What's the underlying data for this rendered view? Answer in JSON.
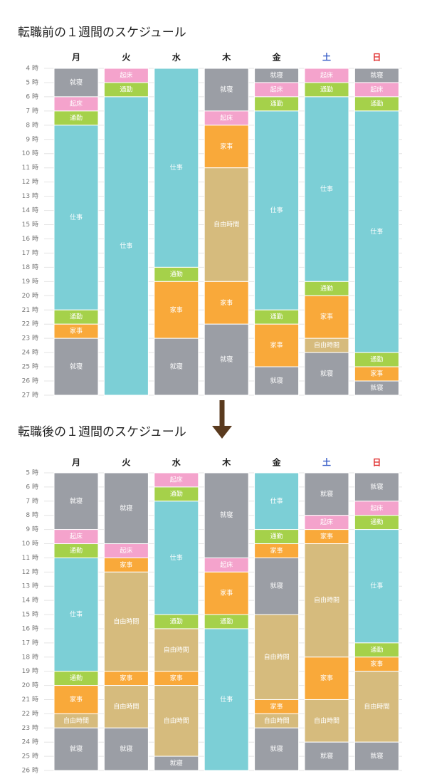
{
  "chart_data": [
    {
      "type": "schedule",
      "title": "転職前の１週間のスケジュール",
      "categories": [
        "月",
        "火",
        "水",
        "木",
        "金",
        "土",
        "日"
      ],
      "category_colors": [
        "#222222",
        "#222222",
        "#222222",
        "#222222",
        "#222222",
        "#3a5fc8",
        "#e03030"
      ],
      "colors": {
        "就寝": "#9b9ea5",
        "起床": "#f4a3cc",
        "通勤": "#a5d14a",
        "仕事": "#7ccfd6",
        "家事": "#f9a93a",
        "自由時間": "#d6bb7d"
      },
      "ylim": [
        4,
        27
      ],
      "yticks": [
        {
          "value": 4,
          "label": "4 時"
        },
        {
          "value": 5,
          "label": "5 時"
        },
        {
          "value": 6,
          "label": "6 時"
        },
        {
          "value": 7,
          "label": "7 時"
        },
        {
          "value": 8,
          "label": "8 時"
        },
        {
          "value": 9,
          "label": "9 時"
        },
        {
          "value": 10,
          "label": "10 時"
        },
        {
          "value": 11,
          "label": "11 時"
        },
        {
          "value": 12,
          "label": "12 時"
        },
        {
          "value": 13,
          "label": "13 時"
        },
        {
          "value": 14,
          "label": "14 時"
        },
        {
          "value": 15,
          "label": "15 時"
        },
        {
          "value": 16,
          "label": "16 時"
        },
        {
          "value": 17,
          "label": "17 時"
        },
        {
          "value": 18,
          "label": "18 時"
        },
        {
          "value": 19,
          "label": "19 時"
        },
        {
          "value": 20,
          "label": "20 時"
        },
        {
          "value": 21,
          "label": "21 時"
        },
        {
          "value": 22,
          "label": "22 時"
        },
        {
          "value": 23,
          "label": "23 時"
        },
        {
          "value": 24,
          "label": "24 時"
        },
        {
          "value": 25,
          "label": "25 時"
        },
        {
          "value": 26,
          "label": "26 時"
        },
        {
          "value": 27,
          "label": "27 時"
        }
      ],
      "grid": true,
      "days": [
        [
          {
            "label": "就寝",
            "start": 4,
            "end": 6
          },
          {
            "label": "起床",
            "start": 6,
            "end": 7
          },
          {
            "label": "通勤",
            "start": 7,
            "end": 8
          },
          {
            "label": "仕事",
            "start": 8,
            "end": 21
          },
          {
            "label": "通勤",
            "start": 21,
            "end": 22
          },
          {
            "label": "家事",
            "start": 22,
            "end": 23
          },
          {
            "label": "就寝",
            "start": 23,
            "end": 27
          }
        ],
        [
          {
            "label": "起床",
            "start": 4,
            "end": 5
          },
          {
            "label": "通勤",
            "start": 5,
            "end": 6
          },
          {
            "label": "仕事",
            "start": 6,
            "end": 27
          }
        ],
        [
          {
            "label": "仕事",
            "start": 4,
            "end": 18
          },
          {
            "label": "通勤",
            "start": 18,
            "end": 19
          },
          {
            "label": "家事",
            "start": 19,
            "end": 23
          },
          {
            "label": "就寝",
            "start": 23,
            "end": 27
          }
        ],
        [
          {
            "label": "就寝",
            "start": 4,
            "end": 7
          },
          {
            "label": "起床",
            "start": 7,
            "end": 8
          },
          {
            "label": "家事",
            "start": 8,
            "end": 11
          },
          {
            "label": "自由時間",
            "start": 11,
            "end": 19
          },
          {
            "label": "家事",
            "start": 19,
            "end": 22
          },
          {
            "label": "就寝",
            "start": 22,
            "end": 27
          }
        ],
        [
          {
            "label": "就寝",
            "start": 4,
            "end": 5
          },
          {
            "label": "起床",
            "start": 5,
            "end": 6
          },
          {
            "label": "通勤",
            "start": 6,
            "end": 7
          },
          {
            "label": "仕事",
            "start": 7,
            "end": 21
          },
          {
            "label": "通勤",
            "start": 21,
            "end": 22
          },
          {
            "label": "家事",
            "start": 22,
            "end": 25
          },
          {
            "label": "就寝",
            "start": 25,
            "end": 27
          }
        ],
        [
          {
            "label": "起床",
            "start": 4,
            "end": 5
          },
          {
            "label": "通勤",
            "start": 5,
            "end": 6
          },
          {
            "label": "仕事",
            "start": 6,
            "end": 19
          },
          {
            "label": "通勤",
            "start": 19,
            "end": 20
          },
          {
            "label": "家事",
            "start": 20,
            "end": 23
          },
          {
            "label": "自由時間",
            "start": 23,
            "end": 24
          },
          {
            "label": "就寝",
            "start": 24,
            "end": 27
          }
        ],
        [
          {
            "label": "就寝",
            "start": 4,
            "end": 5
          },
          {
            "label": "起床",
            "start": 5,
            "end": 6
          },
          {
            "label": "通勤",
            "start": 6,
            "end": 7
          },
          {
            "label": "仕事",
            "start": 7,
            "end": 24
          },
          {
            "label": "通勤",
            "start": 24,
            "end": 25
          },
          {
            "label": "家事",
            "start": 25,
            "end": 26
          },
          {
            "label": "就寝",
            "start": 26,
            "end": 27
          }
        ]
      ]
    },
    {
      "type": "schedule",
      "title": "転職後の１週間のスケジュール",
      "categories": [
        "月",
        "火",
        "水",
        "木",
        "金",
        "土",
        "日"
      ],
      "category_colors": [
        "#222222",
        "#222222",
        "#222222",
        "#222222",
        "#222222",
        "#3a5fc8",
        "#e03030"
      ],
      "colors": {
        "就寝": "#9b9ea5",
        "起床": "#f4a3cc",
        "通勤": "#a5d14a",
        "仕事": "#7ccfd6",
        "家事": "#f9a93a",
        "自由時間": "#d6bb7d"
      },
      "ylim": [
        5,
        26
      ],
      "yticks": [
        {
          "value": 5,
          "label": "5 時"
        },
        {
          "value": 6,
          "label": "6 時"
        },
        {
          "value": 7,
          "label": "7 時"
        },
        {
          "value": 8,
          "label": "8 時"
        },
        {
          "value": 9,
          "label": "9 時"
        },
        {
          "value": 10,
          "label": "10 時"
        },
        {
          "value": 11,
          "label": "11 時"
        },
        {
          "value": 12,
          "label": "12 時"
        },
        {
          "value": 13,
          "label": "13 時"
        },
        {
          "value": 14,
          "label": "14 時"
        },
        {
          "value": 15,
          "label": "15 時"
        },
        {
          "value": 16,
          "label": "16 時"
        },
        {
          "value": 17,
          "label": "17 時"
        },
        {
          "value": 18,
          "label": "18 時"
        },
        {
          "value": 19,
          "label": "19 時"
        },
        {
          "value": 20,
          "label": "20 時"
        },
        {
          "value": 21,
          "label": "21 時"
        },
        {
          "value": 22,
          "label": "22 時"
        },
        {
          "value": 23,
          "label": "23 時"
        },
        {
          "value": 24,
          "label": "24 時"
        },
        {
          "value": 25,
          "label": "25 時"
        },
        {
          "value": 26,
          "label": "26 時"
        }
      ],
      "grid": true,
      "days": [
        [
          {
            "label": "就寝",
            "start": 5,
            "end": 9
          },
          {
            "label": "起床",
            "start": 9,
            "end": 10
          },
          {
            "label": "通勤",
            "start": 10,
            "end": 11
          },
          {
            "label": "仕事",
            "start": 11,
            "end": 19
          },
          {
            "label": "通勤",
            "start": 19,
            "end": 20
          },
          {
            "label": "家事",
            "start": 20,
            "end": 22
          },
          {
            "label": "自由時間",
            "start": 22,
            "end": 23
          },
          {
            "label": "就寝",
            "start": 23,
            "end": 26
          }
        ],
        [
          {
            "label": "就寝",
            "start": 5,
            "end": 10
          },
          {
            "label": "起床",
            "start": 10,
            "end": 11
          },
          {
            "label": "家事",
            "start": 11,
            "end": 12
          },
          {
            "label": "自由時間",
            "start": 12,
            "end": 19
          },
          {
            "label": "家事",
            "start": 19,
            "end": 20
          },
          {
            "label": "自由時間",
            "start": 20,
            "end": 23
          },
          {
            "label": "就寝",
            "start": 23,
            "end": 26
          }
        ],
        [
          {
            "label": "起床",
            "start": 5,
            "end": 6
          },
          {
            "label": "通勤",
            "start": 6,
            "end": 7
          },
          {
            "label": "仕事",
            "start": 7,
            "end": 15
          },
          {
            "label": "通勤",
            "start": 15,
            "end": 16
          },
          {
            "label": "自由時間",
            "start": 16,
            "end": 19
          },
          {
            "label": "家事",
            "start": 19,
            "end": 20
          },
          {
            "label": "自由時間",
            "start": 20,
            "end": 25
          },
          {
            "label": "就寝",
            "start": 25,
            "end": 26
          }
        ],
        [
          {
            "label": "就寝",
            "start": 5,
            "end": 11
          },
          {
            "label": "起床",
            "start": 11,
            "end": 12
          },
          {
            "label": "家事",
            "start": 12,
            "end": 15
          },
          {
            "label": "通勤",
            "start": 15,
            "end": 16
          },
          {
            "label": "仕事",
            "start": 16,
            "end": 26
          }
        ],
        [
          {
            "label": "仕事",
            "start": 5,
            "end": 9
          },
          {
            "label": "通勤",
            "start": 9,
            "end": 10
          },
          {
            "label": "家事",
            "start": 10,
            "end": 11
          },
          {
            "label": "就寝",
            "start": 11,
            "end": 15
          },
          {
            "label": "自由時間",
            "start": 15,
            "end": 21
          },
          {
            "label": "家事",
            "start": 21,
            "end": 22
          },
          {
            "label": "自由時間",
            "start": 22,
            "end": 23
          },
          {
            "label": "就寝",
            "start": 23,
            "end": 26
          }
        ],
        [
          {
            "label": "就寝",
            "start": 5,
            "end": 8
          },
          {
            "label": "起床",
            "start": 8,
            "end": 9
          },
          {
            "label": "家事",
            "start": 9,
            "end": 10
          },
          {
            "label": "自由時間",
            "start": 10,
            "end": 18
          },
          {
            "label": "家事",
            "start": 18,
            "end": 21
          },
          {
            "label": "自由時間",
            "start": 21,
            "end": 24
          },
          {
            "label": "就寝",
            "start": 24,
            "end": 26
          }
        ],
        [
          {
            "label": "就寝",
            "start": 5,
            "end": 7
          },
          {
            "label": "起床",
            "start": 7,
            "end": 8
          },
          {
            "label": "通勤",
            "start": 8,
            "end": 9
          },
          {
            "label": "仕事",
            "start": 9,
            "end": 17
          },
          {
            "label": "通勤",
            "start": 17,
            "end": 18
          },
          {
            "label": "家事",
            "start": 18,
            "end": 19
          },
          {
            "label": "自由時間",
            "start": 19,
            "end": 24
          },
          {
            "label": "就寝",
            "start": 24,
            "end": 26
          }
        ]
      ]
    }
  ]
}
